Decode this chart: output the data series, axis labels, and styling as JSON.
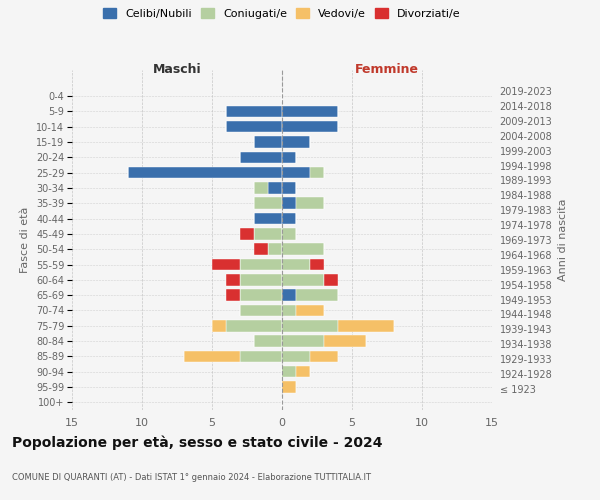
{
  "age_groups": [
    "100+",
    "95-99",
    "90-94",
    "85-89",
    "80-84",
    "75-79",
    "70-74",
    "65-69",
    "60-64",
    "55-59",
    "50-54",
    "45-49",
    "40-44",
    "35-39",
    "30-34",
    "25-29",
    "20-24",
    "15-19",
    "10-14",
    "5-9",
    "0-4"
  ],
  "birth_years": [
    "≤ 1923",
    "1924-1928",
    "1929-1933",
    "1934-1938",
    "1939-1943",
    "1944-1948",
    "1949-1953",
    "1954-1958",
    "1959-1963",
    "1964-1968",
    "1969-1973",
    "1974-1978",
    "1979-1983",
    "1984-1988",
    "1989-1993",
    "1994-1998",
    "1999-2003",
    "2004-2008",
    "2009-2013",
    "2014-2018",
    "2019-2023"
  ],
  "males": {
    "celibi": [
      0,
      0,
      0,
      0,
      0,
      0,
      0,
      0,
      0,
      0,
      0,
      0,
      2,
      0,
      1,
      11,
      3,
      2,
      4,
      4,
      0
    ],
    "coniugati": [
      0,
      0,
      0,
      3,
      2,
      4,
      3,
      3,
      3,
      3,
      1,
      2,
      0,
      2,
      1,
      0,
      0,
      0,
      0,
      0,
      0
    ],
    "vedovi": [
      0,
      0,
      0,
      4,
      0,
      1,
      0,
      0,
      0,
      0,
      0,
      0,
      0,
      0,
      0,
      0,
      0,
      0,
      0,
      0,
      0
    ],
    "divorziati": [
      0,
      0,
      0,
      0,
      0,
      0,
      0,
      1,
      1,
      2,
      1,
      1,
      0,
      0,
      0,
      0,
      0,
      0,
      0,
      0,
      0
    ]
  },
  "females": {
    "nubili": [
      0,
      0,
      0,
      0,
      0,
      0,
      0,
      1,
      0,
      0,
      0,
      0,
      1,
      1,
      1,
      2,
      1,
      2,
      4,
      4,
      0
    ],
    "coniugate": [
      0,
      0,
      1,
      2,
      3,
      4,
      1,
      3,
      3,
      2,
      3,
      1,
      0,
      2,
      0,
      1,
      0,
      0,
      0,
      0,
      0
    ],
    "vedove": [
      0,
      1,
      1,
      2,
      3,
      4,
      2,
      0,
      0,
      0,
      0,
      0,
      0,
      0,
      0,
      0,
      0,
      0,
      0,
      0,
      0
    ],
    "divorziate": [
      0,
      0,
      0,
      0,
      0,
      0,
      0,
      0,
      1,
      1,
      0,
      0,
      0,
      0,
      0,
      0,
      0,
      0,
      0,
      0,
      0
    ]
  },
  "colors": {
    "celibi": "#3a6fac",
    "coniugati": "#b5cfa0",
    "vedovi": "#f5c067",
    "divorziati": "#d93030"
  },
  "xlim": 15,
  "title": "Popolazione per età, sesso e stato civile - 2024",
  "subtitle": "COMUNE DI QUARANTI (AT) - Dati ISTAT 1° gennaio 2024 - Elaborazione TUTTITALIA.IT",
  "ylabel_left": "Fasce di età",
  "ylabel_right": "Anni di nascita",
  "xlabel_left": "Maschi",
  "xlabel_right": "Femmine",
  "legend_labels": [
    "Celibi/Nubili",
    "Coniugati/e",
    "Vedovi/e",
    "Divorziati/e"
  ],
  "bg_color": "#f5f5f5"
}
